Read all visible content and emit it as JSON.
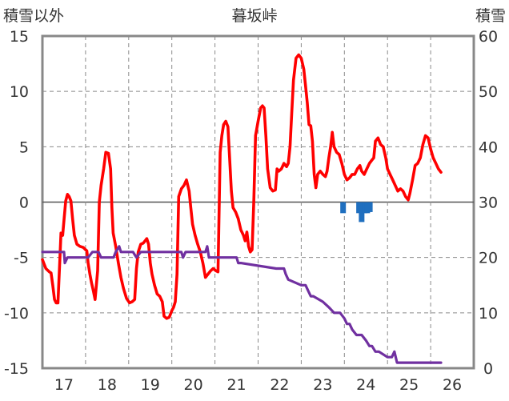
{
  "chart_data": {
    "type": "line",
    "title": "暮坂峠",
    "y_left": {
      "label": "積雪以外",
      "range": [
        -15,
        15
      ],
      "ticks": [
        15,
        10,
        5,
        0,
        -5,
        -10,
        -15
      ]
    },
    "y_right": {
      "label": "積雪",
      "range": [
        0,
        60
      ],
      "ticks": [
        60,
        50,
        40,
        30,
        20,
        10,
        0
      ]
    },
    "x": {
      "range": [
        16.5,
        26.5
      ],
      "ticks": [
        "17",
        "18",
        "19",
        "20",
        "21",
        "22",
        "23",
        "24",
        "25",
        "26"
      ]
    },
    "grid": {
      "vertical_dashed": true,
      "horizontal_dashed": true
    },
    "colors": {
      "temperature": "#ff0000",
      "snow_depth": "#7030a0",
      "precipitation": "#1f6fbf",
      "frame": "#888888"
    },
    "series": [
      {
        "axis": "left",
        "color": "#ff0000",
        "points": [
          [
            16.5,
            -5.2
          ],
          [
            16.58,
            -6.0
          ],
          [
            16.66,
            -6.3
          ],
          [
            16.7,
            -6.4
          ],
          [
            16.74,
            -7.5
          ],
          [
            16.78,
            -8.8
          ],
          [
            16.82,
            -9.1
          ],
          [
            16.86,
            -9.1
          ],
          [
            16.9,
            -5.5
          ],
          [
            16.93,
            -2.8
          ],
          [
            16.97,
            -3.0
          ],
          [
            17.0,
            -1.6
          ],
          [
            17.04,
            0.1
          ],
          [
            17.08,
            0.7
          ],
          [
            17.12,
            0.5
          ],
          [
            17.16,
            0.1
          ],
          [
            17.2,
            -1.5
          ],
          [
            17.24,
            -3.0
          ],
          [
            17.3,
            -3.8
          ],
          [
            17.37,
            -4.0
          ],
          [
            17.45,
            -4.1
          ],
          [
            17.5,
            -4.3
          ],
          [
            17.53,
            -4.4
          ],
          [
            17.56,
            -5.5
          ],
          [
            17.6,
            -6.5
          ],
          [
            17.64,
            -7.3
          ],
          [
            17.68,
            -8.0
          ],
          [
            17.72,
            -8.8
          ],
          [
            17.75,
            -7.5
          ],
          [
            17.78,
            -6.2
          ],
          [
            17.82,
            0.0
          ],
          [
            17.86,
            1.5
          ],
          [
            17.92,
            3.0
          ],
          [
            17.97,
            4.5
          ],
          [
            18.03,
            4.4
          ],
          [
            18.08,
            3.0
          ],
          [
            18.11,
            -0.5
          ],
          [
            18.14,
            -2.8
          ],
          [
            18.2,
            -4.0
          ],
          [
            18.26,
            -5.5
          ],
          [
            18.32,
            -6.8
          ],
          [
            18.38,
            -7.8
          ],
          [
            18.45,
            -8.7
          ],
          [
            18.52,
            -9.1
          ],
          [
            18.58,
            -9.0
          ],
          [
            18.64,
            -8.8
          ],
          [
            18.68,
            -6.0
          ],
          [
            18.72,
            -4.5
          ],
          [
            18.78,
            -3.8
          ],
          [
            18.84,
            -3.7
          ],
          [
            18.88,
            -3.5
          ],
          [
            18.92,
            -3.3
          ],
          [
            18.96,
            -3.8
          ],
          [
            19.0,
            -5.5
          ],
          [
            19.04,
            -6.5
          ],
          [
            19.1,
            -7.5
          ],
          [
            19.16,
            -8.3
          ],
          [
            19.22,
            -8.5
          ],
          [
            19.28,
            -9.0
          ],
          [
            19.32,
            -10.3
          ],
          [
            19.38,
            -10.5
          ],
          [
            19.44,
            -10.4
          ],
          [
            19.5,
            -9.8
          ],
          [
            19.54,
            -9.5
          ],
          [
            19.58,
            -9.0
          ],
          [
            19.62,
            -6.5
          ],
          [
            19.66,
            0.5
          ],
          [
            19.72,
            1.2
          ],
          [
            19.78,
            1.5
          ],
          [
            19.84,
            2.0
          ],
          [
            19.9,
            1.0
          ],
          [
            19.94,
            -0.5
          ],
          [
            19.98,
            -2.0
          ],
          [
            20.04,
            -3.0
          ],
          [
            20.1,
            -3.8
          ],
          [
            20.16,
            -4.5
          ],
          [
            20.22,
            -5.5
          ],
          [
            20.28,
            -6.8
          ],
          [
            20.34,
            -6.5
          ],
          [
            20.4,
            -6.2
          ],
          [
            20.46,
            -6.0
          ],
          [
            20.52,
            -6.2
          ],
          [
            20.57,
            -6.3
          ],
          [
            20.62,
            4.5
          ],
          [
            20.66,
            6.0
          ],
          [
            20.7,
            7.0
          ],
          [
            20.75,
            7.3
          ],
          [
            20.8,
            6.8
          ],
          [
            20.84,
            4.0
          ],
          [
            20.88,
            1.0
          ],
          [
            20.92,
            -0.5
          ],
          [
            20.98,
            -0.9
          ],
          [
            21.04,
            -1.5
          ],
          [
            21.1,
            -2.5
          ],
          [
            21.16,
            -3.0
          ],
          [
            21.2,
            -3.5
          ],
          [
            21.24,
            -2.7
          ],
          [
            21.28,
            -4.0
          ],
          [
            21.32,
            -4.5
          ],
          [
            21.36,
            -4.3
          ],
          [
            21.4,
            0.0
          ],
          [
            21.44,
            6.0
          ],
          [
            21.5,
            7.3
          ],
          [
            21.56,
            8.5
          ],
          [
            21.6,
            8.7
          ],
          [
            21.64,
            8.5
          ],
          [
            21.68,
            6.0
          ],
          [
            21.72,
            3.0
          ],
          [
            21.78,
            1.3
          ],
          [
            21.84,
            1.0
          ],
          [
            21.9,
            1.1
          ],
          [
            21.94,
            3.0
          ],
          [
            21.98,
            2.8
          ],
          [
            22.04,
            3.0
          ],
          [
            22.1,
            3.5
          ],
          [
            22.16,
            3.2
          ],
          [
            22.2,
            3.5
          ],
          [
            22.24,
            5.0
          ],
          [
            22.28,
            8.0
          ],
          [
            22.32,
            11.0
          ],
          [
            22.38,
            13.0
          ],
          [
            22.44,
            13.3
          ],
          [
            22.5,
            13.0
          ],
          [
            22.56,
            12.0
          ],
          [
            22.6,
            10.5
          ],
          [
            22.64,
            9.0
          ],
          [
            22.68,
            7.0
          ],
          [
            22.72,
            6.9
          ],
          [
            22.76,
            5.5
          ],
          [
            22.8,
            2.5
          ],
          [
            22.84,
            1.3
          ],
          [
            22.88,
            2.5
          ],
          [
            22.94,
            2.8
          ],
          [
            23.0,
            2.5
          ],
          [
            23.06,
            2.3
          ],
          [
            23.1,
            2.8
          ],
          [
            23.14,
            4.0
          ],
          [
            23.18,
            5.0
          ],
          [
            23.22,
            6.3
          ],
          [
            23.26,
            5.0
          ],
          [
            23.32,
            4.5
          ],
          [
            23.38,
            4.3
          ],
          [
            23.44,
            3.5
          ],
          [
            23.5,
            2.5
          ],
          [
            23.56,
            2.0
          ],
          [
            23.62,
            2.2
          ],
          [
            23.68,
            2.5
          ],
          [
            23.74,
            2.5
          ],
          [
            23.8,
            3.0
          ],
          [
            23.86,
            3.3
          ],
          [
            23.9,
            2.8
          ],
          [
            23.96,
            2.5
          ],
          [
            24.02,
            3.0
          ],
          [
            24.08,
            3.5
          ],
          [
            24.14,
            3.8
          ],
          [
            24.18,
            4.0
          ],
          [
            24.22,
            5.5
          ],
          [
            24.28,
            5.8
          ],
          [
            24.34,
            5.2
          ],
          [
            24.4,
            5.0
          ],
          [
            24.46,
            4.0
          ],
          [
            24.5,
            3.0
          ],
          [
            24.56,
            2.5
          ],
          [
            24.62,
            2.0
          ],
          [
            24.68,
            1.5
          ],
          [
            24.74,
            1.0
          ],
          [
            24.8,
            1.2
          ],
          [
            24.86,
            1.0
          ],
          [
            24.92,
            0.5
          ],
          [
            24.98,
            0.2
          ],
          [
            25.02,
            0.8
          ],
          [
            25.08,
            2.0
          ],
          [
            25.14,
            3.3
          ],
          [
            25.2,
            3.5
          ],
          [
            25.26,
            4.0
          ],
          [
            25.32,
            5.2
          ],
          [
            25.38,
            6.0
          ],
          [
            25.44,
            5.8
          ],
          [
            25.5,
            4.8
          ],
          [
            25.56,
            4.0
          ],
          [
            25.62,
            3.5
          ],
          [
            25.68,
            3.0
          ],
          [
            25.74,
            2.7
          ]
        ]
      },
      {
        "axis": "right",
        "color": "#7030a0",
        "points": [
          [
            16.5,
            21
          ],
          [
            17.0,
            21
          ],
          [
            17.02,
            19
          ],
          [
            17.08,
            20
          ],
          [
            17.5,
            20
          ],
          [
            17.56,
            20
          ],
          [
            17.66,
            21
          ],
          [
            17.8,
            21
          ],
          [
            17.86,
            20
          ],
          [
            18.0,
            20
          ],
          [
            18.15,
            20
          ],
          [
            18.2,
            21
          ],
          [
            18.28,
            22
          ],
          [
            18.32,
            21
          ],
          [
            18.5,
            21
          ],
          [
            18.6,
            21
          ],
          [
            18.68,
            20
          ],
          [
            18.78,
            21
          ],
          [
            19.0,
            21
          ],
          [
            19.5,
            21
          ],
          [
            19.72,
            21
          ],
          [
            19.76,
            20
          ],
          [
            19.82,
            21
          ],
          [
            20.0,
            21
          ],
          [
            20.2,
            21
          ],
          [
            20.28,
            21
          ],
          [
            20.32,
            22
          ],
          [
            20.36,
            20
          ],
          [
            20.4,
            20
          ],
          [
            21.0,
            20
          ],
          [
            21.04,
            19
          ],
          [
            21.1,
            19
          ],
          [
            21.92,
            18
          ],
          [
            22.1,
            18
          ],
          [
            22.14,
            17
          ],
          [
            22.2,
            16
          ],
          [
            22.5,
            15
          ],
          [
            22.6,
            15
          ],
          [
            22.66,
            14
          ],
          [
            22.72,
            13
          ],
          [
            22.78,
            13
          ],
          [
            23.0,
            12
          ],
          [
            23.14,
            11
          ],
          [
            23.26,
            10
          ],
          [
            23.4,
            10
          ],
          [
            23.5,
            9
          ],
          [
            23.56,
            8
          ],
          [
            23.62,
            8
          ],
          [
            23.68,
            7
          ],
          [
            23.78,
            6
          ],
          [
            23.9,
            6
          ],
          [
            24.0,
            5
          ],
          [
            24.08,
            4
          ],
          [
            24.14,
            4
          ],
          [
            24.22,
            3
          ],
          [
            24.3,
            3
          ],
          [
            24.5,
            2
          ],
          [
            24.6,
            2
          ],
          [
            24.66,
            3
          ],
          [
            24.72,
            1
          ],
          [
            24.8,
            1
          ],
          [
            25.0,
            1
          ],
          [
            25.5,
            1
          ],
          [
            25.74,
            1
          ]
        ]
      }
    ],
    "bars": {
      "axis": "left",
      "color": "#1f6fbf",
      "items": [
        {
          "x": 23.47,
          "value": -1.0
        },
        {
          "x": 23.84,
          "value": -1.0
        },
        {
          "x": 23.9,
          "value": -1.8
        },
        {
          "x": 23.97,
          "value": -1.0
        },
        {
          "x": 24.03,
          "value": -1.0
        },
        {
          "x": 24.09,
          "value": -0.9
        }
      ]
    }
  }
}
